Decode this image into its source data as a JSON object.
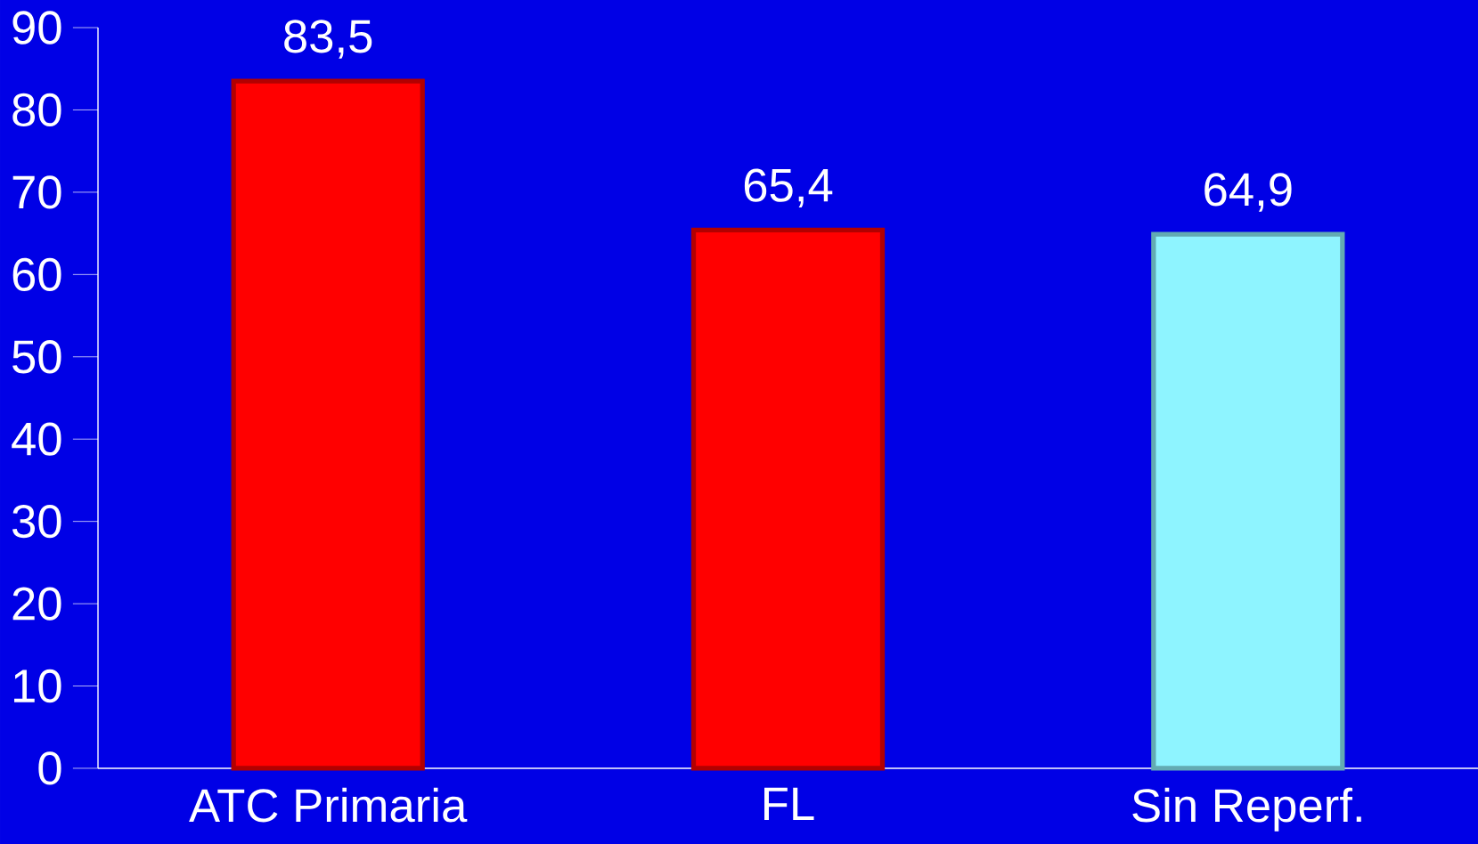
{
  "chart_data": {
    "type": "bar",
    "categories": [
      "ATC Primaria",
      "FL",
      "Sin Reperf."
    ],
    "values": [
      83.5,
      65.4,
      64.9
    ],
    "colors": [
      "#ff0000",
      "#ff0000",
      "#8ef4ff"
    ],
    "value_labels": [
      "83,5",
      "65,4",
      "64,9"
    ],
    "ylim": [
      0,
      90
    ],
    "yticks": [
      0,
      10,
      20,
      30,
      40,
      50,
      60,
      70,
      80,
      90
    ],
    "grid": false
  }
}
